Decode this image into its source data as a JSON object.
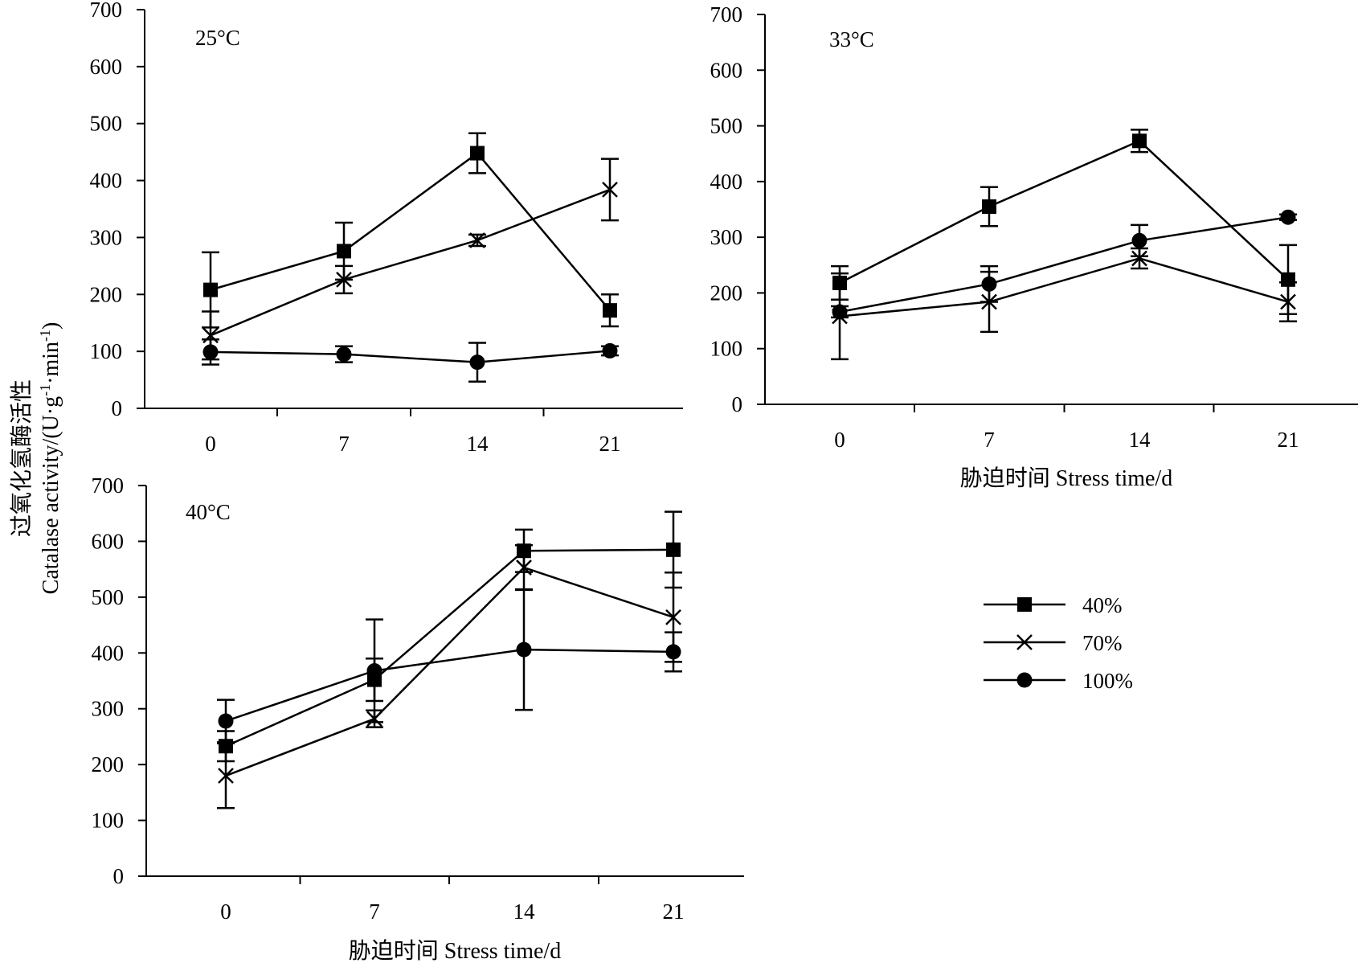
{
  "figure": {
    "y_axis_title_cn": "过氧化氢酶活性",
    "y_axis_title_en": "Catalase activity/(U·g",
    "y_axis_title_sup1": "-1",
    "y_axis_title_mid": "·min",
    "y_axis_title_sup2": "-1",
    "y_axis_title_end": ")",
    "x_axis_title": "胁迫时间 Stress time/d",
    "series_colors": {
      "line": "#000000",
      "marker": "#000000"
    },
    "legend": [
      {
        "label": "40%",
        "marker": "square"
      },
      {
        "label": "70%",
        "marker": "cross"
      },
      {
        "label": "100%",
        "marker": "circle"
      }
    ]
  },
  "chart_data": [
    {
      "type": "line",
      "title": "25°C",
      "categories": [
        "0",
        "7",
        "14",
        "21"
      ],
      "ylim": [
        0,
        700
      ],
      "yticks": [
        0,
        100,
        200,
        300,
        400,
        500,
        600,
        700
      ],
      "grid": false,
      "series": [
        {
          "name": "40%",
          "marker": "square",
          "values": [
            208,
            276,
            448,
            172
          ],
          "errors": [
            66,
            50,
            35,
            28
          ]
        },
        {
          "name": "70%",
          "marker": "cross",
          "values": [
            128,
            226,
            295,
            384
          ],
          "errors": [
            42,
            24,
            10,
            54
          ]
        },
        {
          "name": "100%",
          "marker": "circle",
          "values": [
            99,
            95,
            81,
            101
          ],
          "errors": [
            22,
            14,
            34,
            8
          ]
        }
      ]
    },
    {
      "type": "line",
      "title": "33°C",
      "categories": [
        "0",
        "7",
        "14",
        "21"
      ],
      "ylim": [
        0,
        700
      ],
      "yticks": [
        0,
        100,
        200,
        300,
        400,
        500,
        600,
        700
      ],
      "grid": false,
      "series": [
        {
          "name": "40%",
          "marker": "square",
          "values": [
            218,
            355,
            473,
            224
          ],
          "errors": [
            30,
            35,
            20,
            62
          ]
        },
        {
          "name": "70%",
          "marker": "cross",
          "values": [
            158,
            184,
            262,
            184
          ],
          "errors": [
            77,
            54,
            18,
            35
          ]
        },
        {
          "name": "100%",
          "marker": "circle",
          "values": [
            166,
            216,
            294,
            336
          ],
          "errors": [
            10,
            32,
            28,
            5
          ]
        }
      ]
    },
    {
      "type": "line",
      "title": "40°C",
      "categories": [
        "0",
        "7",
        "14",
        "21"
      ],
      "ylim": [
        0,
        700
      ],
      "yticks": [
        0,
        100,
        200,
        300,
        400,
        500,
        600,
        700
      ],
      "grid": false,
      "series": [
        {
          "name": "40%",
          "marker": "square",
          "values": [
            233,
            352,
            583,
            585
          ],
          "errors": [
            27,
            38,
            38,
            68
          ]
        },
        {
          "name": "70%",
          "marker": "cross",
          "values": [
            180,
            282,
            553,
            464
          ],
          "errors": [
            58,
            15,
            40,
            80
          ]
        },
        {
          "name": "100%",
          "marker": "circle",
          "values": [
            278,
            368,
            406,
            402
          ],
          "errors": [
            38,
            92,
            108,
            35
          ]
        }
      ]
    }
  ]
}
